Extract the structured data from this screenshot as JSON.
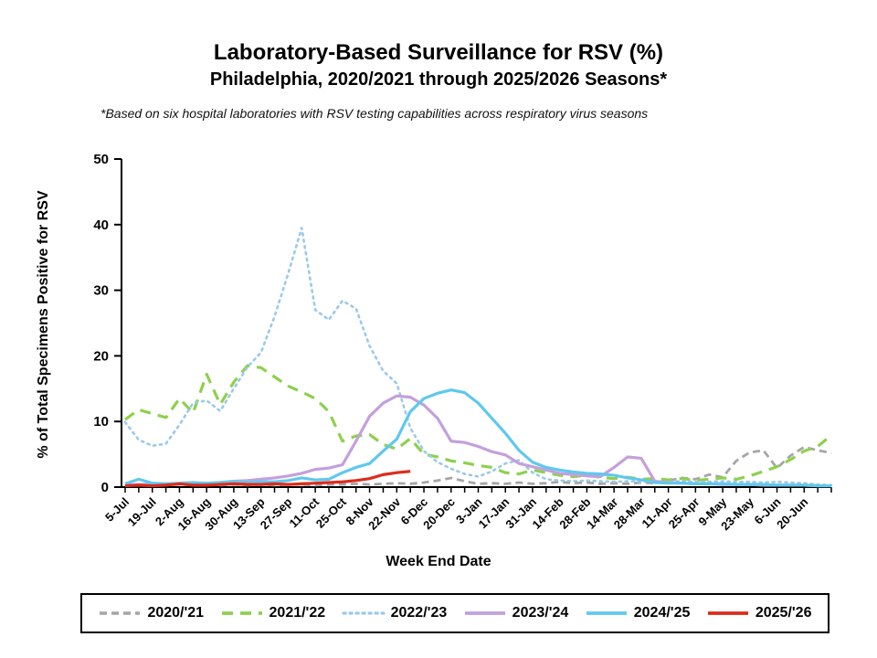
{
  "header": {
    "title": "Laboratory-Based Surveillance for RSV (%)",
    "subtitle": "Philadelphia, 2020/2021 through 2025/2026 Seasons*",
    "footnote": "*Based on six hospital laboratories with RSV testing capabilities across respiratory virus seasons"
  },
  "chart_data": {
    "type": "line",
    "title": "Laboratory-Based Surveillance for RSV (%)",
    "xlabel": "Week End Date",
    "ylabel": "%  of Total Specimens Positive for RSV",
    "ylim": [
      0,
      50
    ],
    "ytick_interval": 10,
    "grid": "off",
    "legend_position": "bottom",
    "weeks_total": 53,
    "x_tick_labels": [
      "5-Jul",
      "19-Jul",
      "2-Aug",
      "16-Aug",
      "30-Aug",
      "13-Sep",
      "27-Sep",
      "11-Oct",
      "25-Oct",
      "8-Nov",
      "22-Nov",
      "6-Dec",
      "20-Dec",
      "3-Jan",
      "17-Jan",
      "31-Jan",
      "14-Feb",
      "28-Feb",
      "14-Mar",
      "28-Mar",
      "11-Apr",
      "25-Apr",
      "9-May",
      "23-May",
      "6-Jun",
      "20-Jun"
    ],
    "series": [
      {
        "name": "2020/'21",
        "color": "#a6a6a6",
        "style": "dash-short",
        "values": [
          0.3,
          0.4,
          0.3,
          0.3,
          0.4,
          0.3,
          0.4,
          0.3,
          0.4,
          0.3,
          0.4,
          0.3,
          0.4,
          0.4,
          0.3,
          0.4,
          0.4,
          0.5,
          0.4,
          0.5,
          0.6,
          0.5,
          0.7,
          1.0,
          1.4,
          0.9,
          0.5,
          0.6,
          0.5,
          0.7,
          0.5,
          0.6,
          0.8,
          0.6,
          0.7,
          0.5,
          0.6,
          0.5,
          0.7,
          0.6,
          1.0,
          1.4,
          1.2,
          1.9,
          1.5,
          4.0,
          5.3,
          5.6,
          2.9,
          4.8,
          6.1,
          5.6,
          5.2
        ]
      },
      {
        "name": "2021/'22",
        "color": "#8ed04e",
        "style": "dash-long",
        "values": [
          10.3,
          11.8,
          11.2,
          10.6,
          13.5,
          11.3,
          17.2,
          12.6,
          16.0,
          18.5,
          18.2,
          16.8,
          15.4,
          14.5,
          13.5,
          11.5,
          7.0,
          7.8,
          8.0,
          6.5,
          5.8,
          7.4,
          5.0,
          4.6,
          4.0,
          3.7,
          3.3,
          3.0,
          2.2,
          2.0,
          2.6,
          2.2,
          1.8,
          1.6,
          1.8,
          1.5,
          1.3,
          1.5,
          1.2,
          1.3,
          1.1,
          1.3,
          1.0,
          1.2,
          1.4,
          1.2,
          1.7,
          2.4,
          3.1,
          4.2,
          5.5,
          6.2,
          7.9
        ]
      },
      {
        "name": "2022/'23",
        "color": "#9cc9e8",
        "style": "dotted",
        "values": [
          9.9,
          7.2,
          6.3,
          6.6,
          9.5,
          12.8,
          13.2,
          11.6,
          15.0,
          18.3,
          20.5,
          26.0,
          32.5,
          39.5,
          27.0,
          25.5,
          28.4,
          27.2,
          21.5,
          17.7,
          15.8,
          9.0,
          5.5,
          3.8,
          2.8,
          2.0,
          1.6,
          2.4,
          3.6,
          4.1,
          2.2,
          1.2,
          1.0,
          0.9,
          1.0,
          0.9,
          0.8,
          0.9,
          0.8,
          0.9,
          0.8,
          0.9,
          0.8,
          0.8,
          0.9,
          0.8,
          0.8,
          0.7,
          0.8,
          0.7,
          0.6,
          0.4,
          0.3
        ]
      },
      {
        "name": "2023/'24",
        "color": "#c3a0dc",
        "style": "solid",
        "values": [
          0.3,
          0.4,
          0.4,
          0.5,
          0.5,
          0.5,
          0.6,
          0.7,
          0.9,
          1.0,
          1.2,
          1.4,
          1.7,
          2.1,
          2.7,
          2.9,
          3.4,
          7.0,
          10.8,
          12.8,
          13.9,
          13.7,
          12.5,
          10.5,
          7.0,
          6.8,
          6.2,
          5.4,
          4.9,
          3.6,
          3.1,
          2.6,
          2.1,
          1.9,
          1.7,
          1.6,
          3.0,
          4.6,
          4.4,
          0.9,
          0.7,
          0.6,
          0.5,
          0.5,
          0.4,
          0.4,
          0.4,
          0.3,
          0.3,
          0.3,
          0.3,
          0.2,
          0.2
        ]
      },
      {
        "name": "2024/'25",
        "color": "#5fc8ee",
        "style": "solid",
        "values": [
          0.5,
          1.2,
          0.6,
          0.5,
          0.6,
          0.7,
          0.6,
          0.7,
          0.8,
          0.7,
          0.8,
          0.8,
          1.0,
          1.4,
          1.1,
          1.2,
          2.2,
          3.0,
          3.6,
          5.5,
          7.3,
          11.5,
          13.5,
          14.3,
          14.8,
          14.4,
          12.8,
          10.5,
          8.2,
          5.6,
          3.8,
          3.0,
          2.6,
          2.3,
          2.1,
          2.0,
          1.8,
          1.4,
          1.1,
          0.7,
          0.6,
          0.6,
          0.5,
          0.5,
          0.5,
          0.4,
          0.4,
          0.4,
          0.3,
          0.3,
          0.3,
          0.2,
          0.2
        ]
      },
      {
        "name": "2025/'26",
        "color": "#dd2b1c",
        "style": "solid",
        "values": [
          0.2,
          0.3,
          0.2,
          0.3,
          0.5,
          0.3,
          0.3,
          0.4,
          0.5,
          0.4,
          0.4,
          0.5,
          0.4,
          0.5,
          0.6,
          0.7,
          0.8,
          1.0,
          1.3,
          1.9,
          2.2,
          2.4
        ]
      }
    ]
  }
}
